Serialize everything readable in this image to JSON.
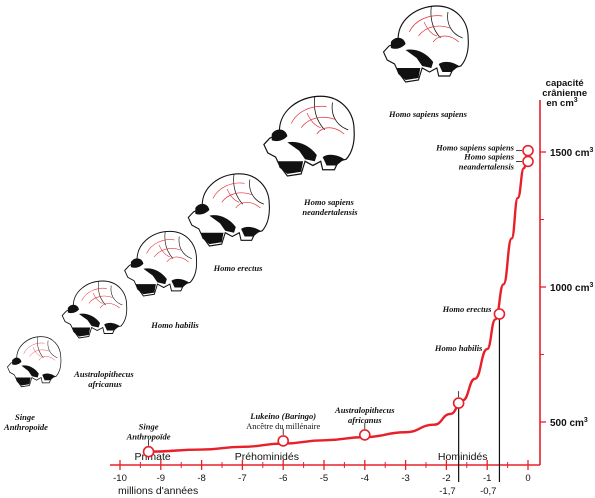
{
  "chart_data": {
    "type": "line",
    "x_axis": {
      "label": "millions d'années",
      "range": [
        -10,
        0.3
      ],
      "ticks": [
        -10,
        -9,
        -8,
        -7,
        -6,
        -5,
        -4,
        -3,
        -2,
        -1,
        0
      ],
      "tick_labels": [
        "-10",
        "-9",
        "-8",
        "-7",
        "-6",
        "-5",
        "-4",
        "-3",
        "-2",
        "-1",
        "0"
      ],
      "marked_values": [
        {
          "x": -1.7,
          "label": "-1,7"
        },
        {
          "x": -0.7,
          "label": "-0,7"
        }
      ]
    },
    "y_axis": {
      "label_lines": [
        "capacité",
        "crânienne",
        "en cm",
        "3"
      ],
      "range": [
        250,
        1650
      ],
      "ticks": [
        {
          "value": 500,
          "label": "500 cm",
          "sup": "3"
        },
        {
          "value": 1000,
          "label": "1000 cm",
          "sup": "3"
        },
        {
          "value": 1500,
          "label": "1500 cm",
          "sup": "3"
        }
      ]
    },
    "periods": [
      {
        "label": "Primate",
        "x": -9.2
      },
      {
        "label": "Préhominidés",
        "x": -6.4
      },
      {
        "label": "Hominidés",
        "x": -1.6
      }
    ],
    "series": [
      {
        "color": "#e8202a",
        "points": [
          {
            "x": -9.3,
            "y": 390
          },
          {
            "x": -8.0,
            "y": 398
          },
          {
            "x": -7.0,
            "y": 408
          },
          {
            "x": -6.0,
            "y": 420
          },
          {
            "x": -5.0,
            "y": 432
          },
          {
            "x": -4.0,
            "y": 444
          },
          {
            "x": -3.0,
            "y": 462
          },
          {
            "x": -2.3,
            "y": 490
          },
          {
            "x": -1.9,
            "y": 530
          },
          {
            "x": -1.6,
            "y": 580
          },
          {
            "x": -1.3,
            "y": 660
          },
          {
            "x": -1.0,
            "y": 770
          },
          {
            "x": -0.8,
            "y": 880
          },
          {
            "x": -0.6,
            "y": 1010
          },
          {
            "x": -0.4,
            "y": 1180
          },
          {
            "x": -0.25,
            "y": 1330
          },
          {
            "x": -0.1,
            "y": 1440
          },
          {
            "x": 0.0,
            "y": 1500
          }
        ]
      }
    ],
    "markers": [
      {
        "x": -9.3,
        "y": 390,
        "lines": [
          "Singe",
          "Anthropoïde"
        ],
        "italic": [
          true,
          true
        ]
      },
      {
        "x": -6.0,
        "y": 430,
        "lines": [
          "Lukeino (Baringo)",
          "Ancêtre du millénaire"
        ],
        "italic": [
          true,
          false
        ]
      },
      {
        "x": -4.0,
        "y": 452,
        "lines": [
          "Australopithecus",
          "africanus"
        ],
        "italic": [
          true,
          true
        ]
      },
      {
        "x": -1.7,
        "y": 570,
        "lines": [
          "Homo habilis"
        ],
        "italic": [
          true
        ]
      },
      {
        "x": -0.7,
        "y": 900,
        "lines": [
          "Homo erectus"
        ],
        "italic": [
          true
        ]
      },
      {
        "x": 0.0,
        "y": 1465,
        "lines": [
          "Homo sapiens",
          "neandertalensis"
        ],
        "italic": [
          true,
          true
        ]
      },
      {
        "x": 0.0,
        "y": 1505,
        "lines": [
          "Homo sapiens sapiens"
        ],
        "italic": [
          true
        ]
      }
    ]
  },
  "skulls": [
    {
      "id": "singe",
      "lines": [
        "Singe",
        "Anthropoïde"
      ]
    },
    {
      "id": "australopithecus",
      "lines": [
        "Australopithecus",
        "africanus"
      ]
    },
    {
      "id": "habilis",
      "lines": [
        "Homo habilis"
      ]
    },
    {
      "id": "erectus",
      "lines": [
        "Homo erectus"
      ]
    },
    {
      "id": "neandertalensis",
      "lines": [
        "Homo sapiens",
        "neandertalensis"
      ]
    },
    {
      "id": "sapiens",
      "lines": [
        "Homo sapiens sapiens"
      ]
    }
  ]
}
